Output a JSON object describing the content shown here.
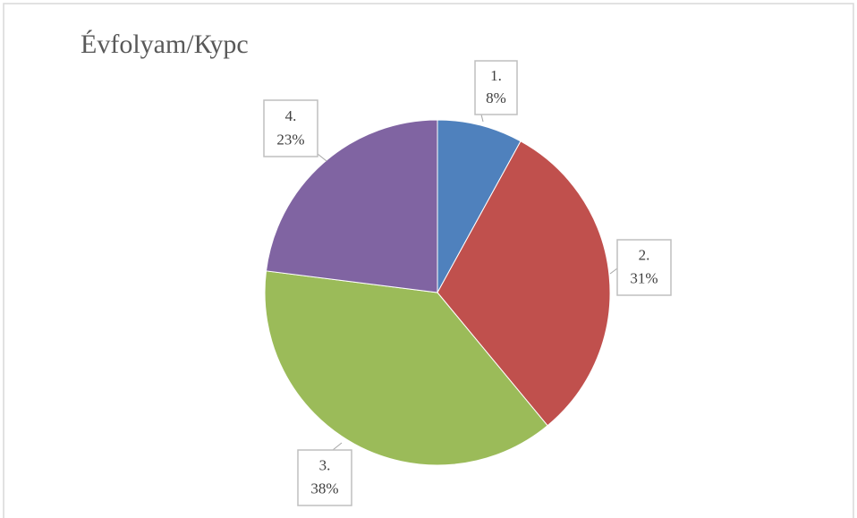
{
  "chart_data": {
    "type": "pie",
    "title": "Évfolyam/Курс",
    "categories": [
      "1.",
      "2.",
      "3.",
      "4."
    ],
    "values": [
      8,
      31,
      38,
      23
    ],
    "value_labels": [
      "8%",
      "31%",
      "38%",
      "23%"
    ],
    "colors": [
      "#4f81bd",
      "#c0504d",
      "#9bbb59",
      "#8064a2"
    ]
  }
}
